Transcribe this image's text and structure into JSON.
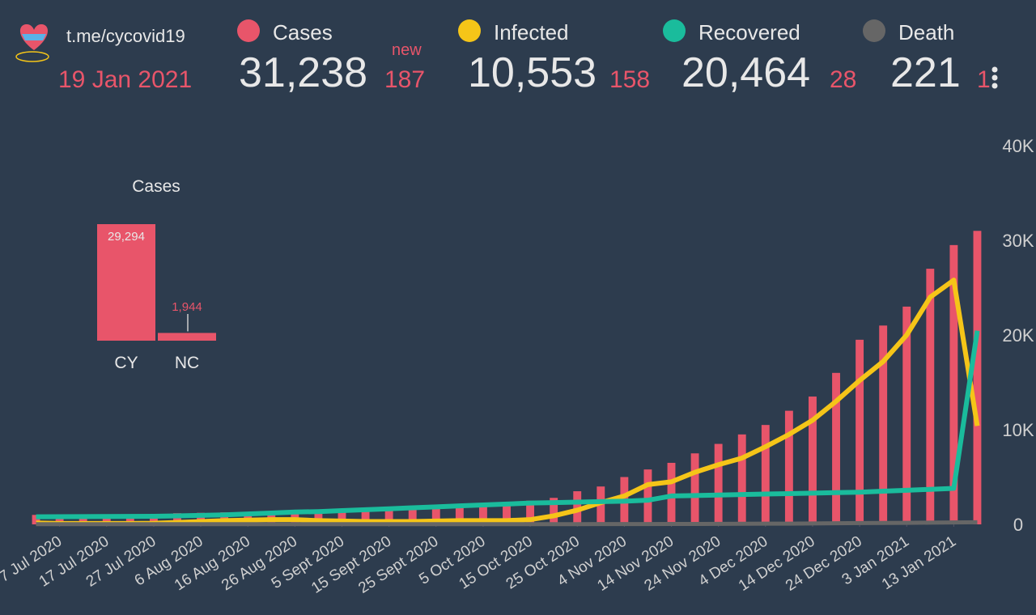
{
  "header": {
    "link": "t.me/cycovid19",
    "date": "19 Jan 2021",
    "new_label": "new",
    "stats": [
      {
        "total": "31,238",
        "new": "187"
      },
      {
        "total": "10,553",
        "new": "158"
      },
      {
        "total": "20,464",
        "new": "28"
      },
      {
        "total": "221",
        "new": "1"
      }
    ]
  },
  "chart_data": [
    {
      "type": "bar",
      "categories": [
        null,
        "7 Jul 2020",
        null,
        "17 Jul 2020",
        null,
        "27 Jul 2020",
        null,
        "6 Aug 2020",
        null,
        "16 Aug 2020",
        null,
        "26 Aug 2020",
        null,
        "5 Sept 2020",
        null,
        "15 Sept 2020",
        null,
        "25 Sept 2020",
        null,
        "5 Oct 2020",
        null,
        "15 Oct 2020",
        null,
        "25 Oct 2020",
        null,
        "4 Nov 2020",
        null,
        "14 Nov 2020",
        null,
        "24 Nov 2020",
        null,
        "4 Dec 2020",
        null,
        "14 Dec 2020",
        null,
        "24 Dec 2020",
        null,
        "3 Jan 2021",
        null,
        "13 Jan 2021",
        null
      ],
      "series": [
        {
          "name": "Cases",
          "type": "bar",
          "color": "#e8556a",
          "values": [
            1000,
            1020,
            1030,
            1040,
            1050,
            1060,
            1180,
            1220,
            1270,
            1300,
            1380,
            1430,
            1470,
            1480,
            1500,
            1520,
            1580,
            1700,
            1800,
            1950,
            2200,
            2500,
            2800,
            3500,
            4000,
            5000,
            5800,
            6500,
            7500,
            8500,
            9500,
            10500,
            12000,
            13500,
            16000,
            19500,
            21000,
            23000,
            27000,
            29500,
            31000
          ]
        },
        {
          "name": "Infected",
          "type": "line",
          "color": "#f5c518",
          "values": [
            150,
            100,
            100,
            100,
            100,
            120,
            200,
            300,
            400,
            450,
            500,
            500,
            400,
            350,
            300,
            300,
            300,
            350,
            400,
            400,
            400,
            500,
            900,
            1500,
            2300,
            3000,
            4200,
            4500,
            5500,
            6300,
            7000,
            8200,
            9500,
            11000,
            13000,
            15200,
            17200,
            20000,
            24000,
            25800,
            10400
          ]
        },
        {
          "name": "Recovered",
          "type": "line",
          "color": "#1abc9c",
          "values": [
            800,
            810,
            820,
            830,
            840,
            850,
            900,
            950,
            1000,
            1100,
            1200,
            1300,
            1350,
            1450,
            1550,
            1650,
            1750,
            1850,
            1950,
            2050,
            2150,
            2250,
            2300,
            2350,
            2400,
            2450,
            2550,
            3000,
            3050,
            3100,
            3150,
            3200,
            3250,
            3300,
            3350,
            3400,
            3500,
            3600,
            3700,
            3800,
            20450
          ]
        },
        {
          "name": "Death",
          "type": "line",
          "color": "#666666",
          "values": [
            19,
            19,
            19,
            19,
            19,
            19,
            20,
            20,
            20,
            21,
            21,
            21,
            22,
            22,
            22,
            22,
            22,
            23,
            23,
            23,
            23,
            24,
            25,
            26,
            28,
            30,
            34,
            38,
            44,
            50,
            60,
            70,
            80,
            100,
            120,
            140,
            150,
            160,
            180,
            200,
            220
          ]
        }
      ],
      "ylim": [
        0,
        40000
      ],
      "yticks": [
        0,
        {
          "value": 10000,
          "label": "10K"
        },
        {
          "value": 20000,
          "label": "20K"
        },
        {
          "value": 30000,
          "label": "30K"
        },
        {
          "value": 40000,
          "label": "40K"
        }
      ]
    },
    {
      "type": "bar",
      "title": "Cases",
      "categories": [
        "CY",
        "NC"
      ],
      "values": [
        29294,
        1944
      ],
      "value_labels": [
        "29,294",
        "1,944"
      ],
      "color": "#e8556a"
    }
  ]
}
